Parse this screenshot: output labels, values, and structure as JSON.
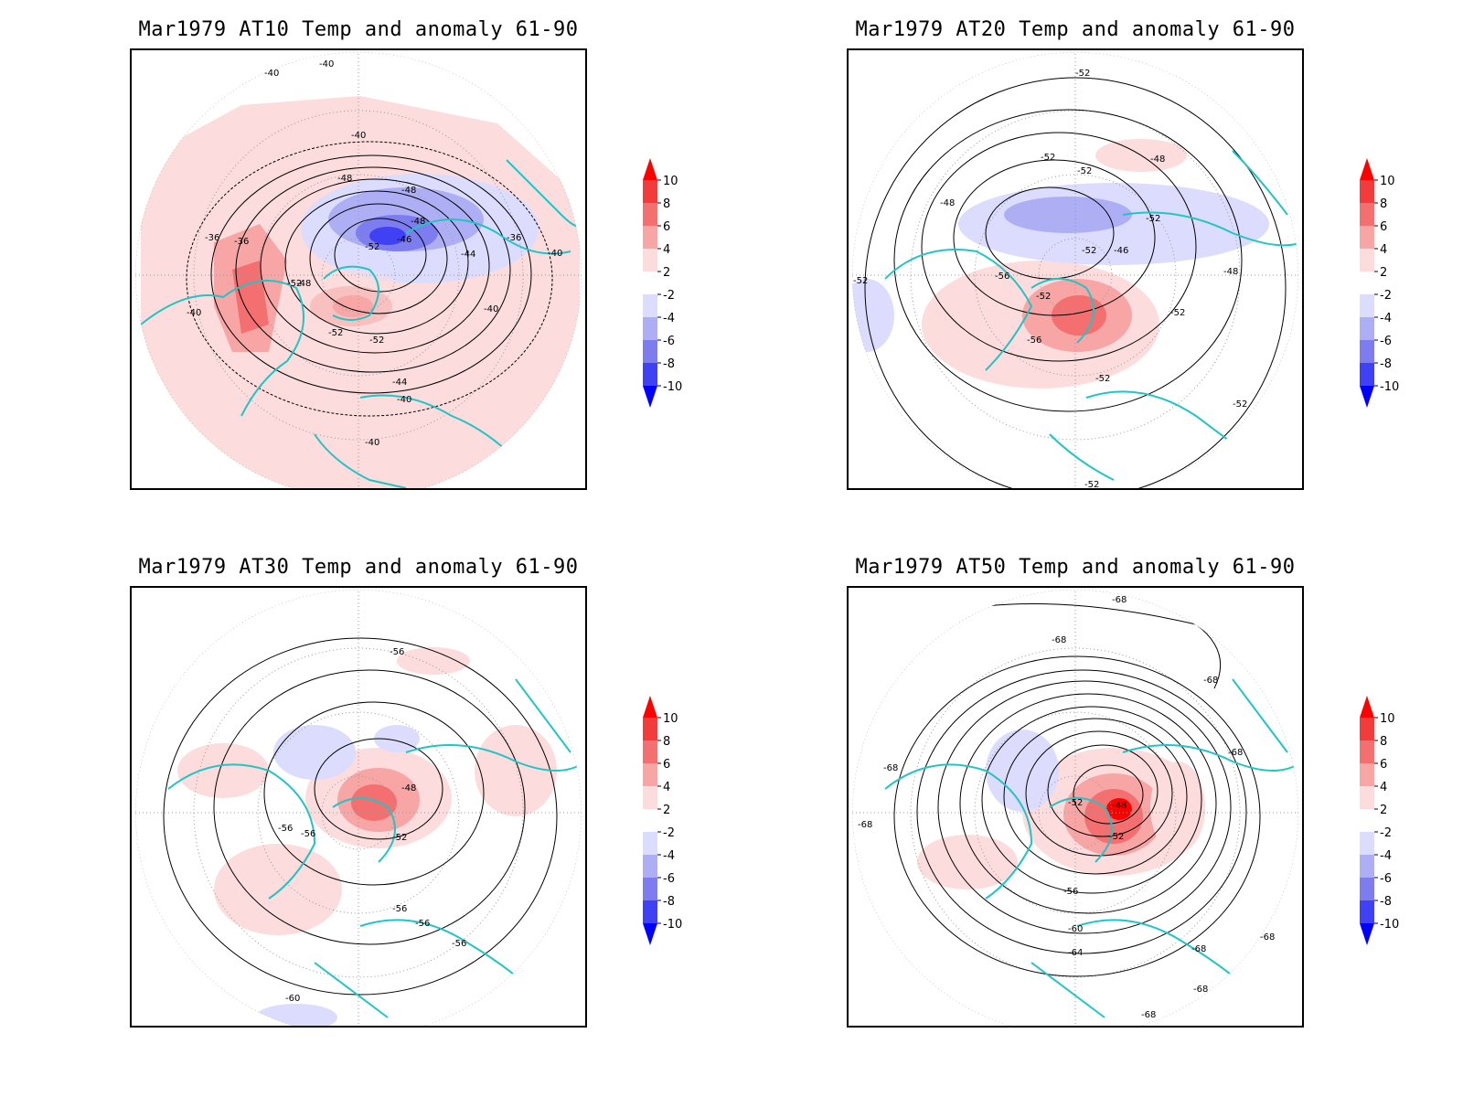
{
  "panels": [
    {
      "title": "Mar1979 AT10 Temp and anomaly 61-90",
      "contour_labels": [
        "-40",
        "-40",
        "-40",
        "-48",
        "-48",
        "-48",
        "-48",
        "-46",
        "-52",
        "-52",
        "-52",
        "-52",
        "-36",
        "-36",
        "-36",
        "-44",
        "-44",
        "-40",
        "-40",
        "-40",
        "-40",
        "-40"
      ]
    },
    {
      "title": "Mar1979 AT20 Temp and anomaly 61-90",
      "contour_labels": [
        "-52",
        "-52",
        "-52",
        "-48",
        "-48",
        "-52",
        "-52",
        "-46",
        "-56",
        "-52",
        "-56",
        "-52",
        "-48",
        "-52",
        "-52",
        "-52",
        "-52"
      ]
    },
    {
      "title": "Mar1979 AT30 Temp and anomaly 61-90",
      "contour_labels": [
        "-56",
        "-48",
        "-52",
        "-56",
        "-56",
        "-56",
        "-56",
        "-56",
        "-60"
      ]
    },
    {
      "title": "Mar1979 AT50 Temp and anomaly 61-90",
      "contour_labels": [
        "-68",
        "-68",
        "-68",
        "-68",
        "-68",
        "-68",
        "-52",
        "-48",
        "-52",
        "-56",
        "-60",
        "-64",
        "-68",
        "-68",
        "-68",
        "-68"
      ]
    }
  ],
  "colorbar": {
    "labels": [
      "10",
      "8",
      "6",
      "4",
      "2",
      "-2",
      "-4",
      "-6",
      "-8",
      "-10"
    ],
    "colors": [
      "#ff0000",
      "#f23c3c",
      "#f47070",
      "#f7a5a5",
      "#fcdcdc",
      "#ffffff",
      "#dcdcff",
      "#aeaef5",
      "#7d7df0",
      "#4040f5",
      "#0000ff"
    ]
  }
}
